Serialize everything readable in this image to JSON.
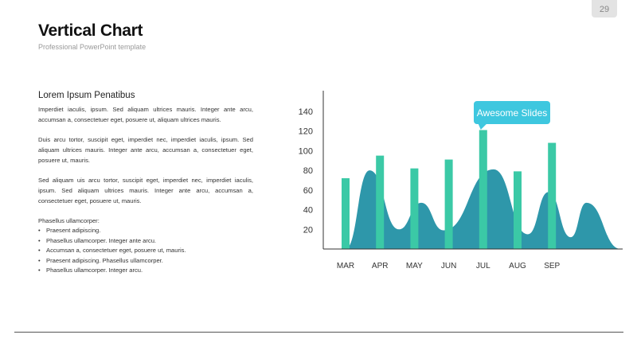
{
  "page_number": "29",
  "header": {
    "title": "Vertical Chart",
    "subtitle": "Professional PowerPoint template"
  },
  "content": {
    "heading": "Lorem Ipsum Penatibus",
    "paragraphs": [
      "Imperdiet iaculis, ipsum. Sed aliquam ultrices mauris. Integer ante arcu, accumsan a, consectetuer  eget, posuere ut, aliquam ultrices mauris.",
      "Duis arcu tortor, suscipit eget, imperdiet nec, imperdiet iaculis, ipsum. Sed aliquam ultrices mauris. Integer ante arcu, accumsan a, consectetuer eget, posuere ut, mauris.",
      "Sed aliquam  uis arcu tortor, suscipit eget, imperdiet nec, imperdiet iaculis, ipsum.  Sed  aliquam  ultrices  mauris.  Integer  ante  arcu,  accumsan  a, consectetuer  eget, posuere ut, mauris."
    ],
    "list_title": "Phasellus ullamcorper:",
    "bullets": [
      "Praesent adipiscing.",
      "Phasellus ullamcorper. Integer ante arcu.",
      "Accumsan a, consectetuer  eget, posuere ut, mauris.",
      "Praesent adipiscing. Phasellus ullamcorper.",
      "Phasellus ullamcorper. Integer arcu."
    ]
  },
  "chart_data": {
    "type": "bar",
    "categories": [
      "MAR",
      "APR",
      "MAY",
      "JUN",
      "JUL",
      "AUG",
      "SEP"
    ],
    "bars": [
      72,
      95,
      82,
      91,
      121,
      79,
      108
    ],
    "area_peaks": [
      {
        "x": 0.7,
        "y": 80
      },
      {
        "x": 2.2,
        "y": 47
      },
      {
        "x": 4.3,
        "y": 81
      },
      {
        "x": 5.9,
        "y": 58
      },
      {
        "x": 7.0,
        "y": 47
      }
    ],
    "area_valleys": [
      {
        "x": 1.55,
        "y": 20
      },
      {
        "x": 2.85,
        "y": 19
      },
      {
        "x": 5.3,
        "y": 15
      },
      {
        "x": 6.55,
        "y": 12
      }
    ],
    "y_ticks": [
      20,
      40,
      60,
      80,
      100,
      120,
      140
    ],
    "ylim": [
      0,
      160
    ],
    "annotation": "Awesome Slides",
    "colors": {
      "bars": "#3bc9a6",
      "area": "#2a95a8",
      "callout": "#3ec7df",
      "axis": "#333333"
    }
  }
}
